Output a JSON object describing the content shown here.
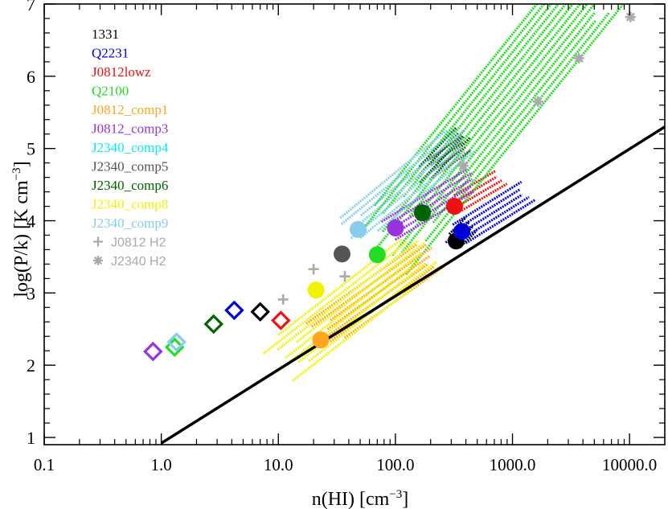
{
  "chart_data": {
    "type": "scatter",
    "xlabel": "n(HI) [cm",
    "xlabel_sup": "−3",
    "xlabel_end": "]",
    "ylabel": "log(P/k) [K cm",
    "ylabel_sup": "−3",
    "ylabel_end": "]",
    "x_scale": "log",
    "xlim": [
      0.1,
      20000
    ],
    "ylim": [
      0.9,
      7.0
    ],
    "x_ticks": [
      {
        "value": 0.1,
        "label": "0.1"
      },
      {
        "value": 1,
        "label": "1.0"
      },
      {
        "value": 10,
        "label": "10.0"
      },
      {
        "value": 100,
        "label": "100.0"
      },
      {
        "value": 1000,
        "label": "1000.0"
      },
      {
        "value": 10000,
        "label": "10000.0"
      }
    ],
    "y_ticks": [
      {
        "value": 1,
        "label": "1"
      },
      {
        "value": 2,
        "label": "2"
      },
      {
        "value": 3,
        "label": "3"
      },
      {
        "value": 4,
        "label": "4"
      },
      {
        "value": 5,
        "label": "5"
      },
      {
        "value": 6,
        "label": "6"
      },
      {
        "value": 7,
        "label": "7"
      }
    ],
    "legend_position": "top-left",
    "reference_line": {
      "color": "#000000",
      "points": [
        [
          1.0,
          0.92
        ],
        [
          20000,
          5.3
        ]
      ]
    },
    "series": [
      {
        "name": "1331",
        "color": "#000000",
        "diamond": [
          7.0,
          2.74
        ],
        "circle": [
          330,
          3.72
        ],
        "band": {
          "x": [
            330,
            450
          ],
          "y": [
            3.72,
            3.94
          ]
        }
      },
      {
        "name": "Q2231",
        "color": "#0000d8",
        "diamond": [
          4.2,
          2.76
        ],
        "circle": [
          370,
          3.85
        ],
        "band": {
          "x": [
            310,
            1300
          ],
          "y": [
            3.75,
            4.38
          ]
        }
      },
      {
        "name": "J0812lowz",
        "color": "#ee1111",
        "diamond": [
          10.5,
          2.62
        ],
        "circle": [
          320,
          4.2
        ],
        "band": {
          "x": [
            320,
            800
          ],
          "y": [
            4.2,
            4.58
          ]
        }
      },
      {
        "name": "Q2100",
        "color": "#22dd22",
        "diamond": [
          1.3,
          2.25
        ],
        "circle": [
          70,
          3.53
        ],
        "band": {
          "x": [
            110,
            4500
          ],
          "y": [
            3.85,
            7.1
          ]
        }
      },
      {
        "name": "J0812_comp1",
        "color": "#ffa620",
        "diamond": null,
        "circle": [
          23,
          2.35
        ],
        "band": {
          "x": [
            25,
            200
          ],
          "y": [
            2.45,
            3.5
          ]
        }
      },
      {
        "name": "J0812_comp3",
        "color": "#9933dd",
        "diamond": [
          0.85,
          2.19
        ],
        "circle": [
          100,
          3.9
        ],
        "band": {
          "x": [
            100,
            450
          ],
          "y": [
            3.9,
            4.55
          ]
        }
      },
      {
        "name": "J2340_comp4",
        "color": "#00eeee",
        "diamond": null,
        "circle": null,
        "band": null
      },
      {
        "name": "J2340_comp5",
        "color": "#555555",
        "diamond": null,
        "circle": [
          35,
          3.54
        ],
        "band": {
          "x": [
            200,
            400
          ],
          "y": [
            4.7,
            5.05
          ]
        }
      },
      {
        "name": "J2340_comp6",
        "color": "#006400",
        "diamond": [
          2.8,
          2.57
        ],
        "circle": [
          170,
          4.11
        ],
        "band": {
          "x": [
            170,
            380
          ],
          "y": [
            4.6,
            5.2
          ]
        }
      },
      {
        "name": "J2340_comp8",
        "color": "#f2f200",
        "diamond": null,
        "circle": [
          21,
          3.04
        ],
        "band": {
          "x": [
            12,
            170
          ],
          "y": [
            2.1,
            3.55
          ]
        }
      },
      {
        "name": "J2340_comp9",
        "color": "#87ceeb",
        "diamond": [
          1.35,
          2.32
        ],
        "circle": [
          48,
          3.88
        ],
        "band": {
          "x": [
            48,
            380
          ],
          "y": [
            3.9,
            5.1
          ]
        }
      }
    ],
    "h2": [
      {
        "name": "J0812 H2",
        "marker": "+",
        "color": "#aaaaaa",
        "points": [
          [
            20,
            3.33
          ],
          [
            37,
            3.23
          ],
          [
            11,
            2.91
          ]
        ]
      },
      {
        "name": "J2340 H2",
        "marker": "*",
        "color": "#aaaaaa",
        "points": [
          [
            380,
            4.76
          ],
          [
            1650,
            5.65
          ],
          [
            3700,
            6.25
          ],
          [
            10200,
            6.82
          ]
        ]
      }
    ]
  }
}
